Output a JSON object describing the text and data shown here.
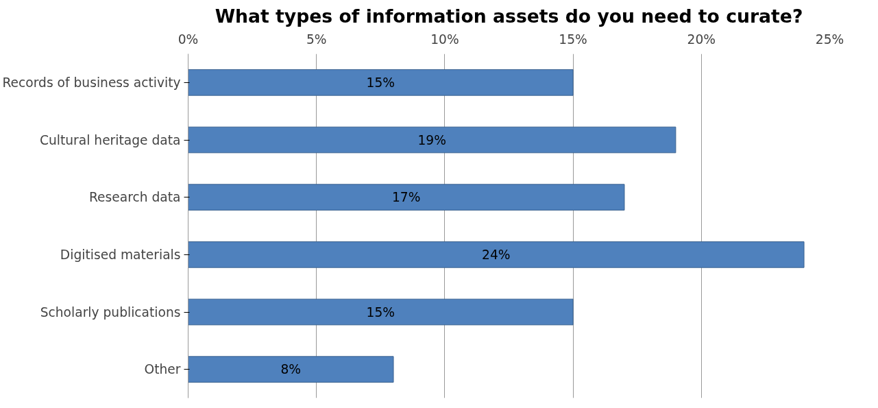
{
  "chart_data": {
    "type": "bar",
    "orientation": "horizontal",
    "title": "What types of information assets do you need to curate?",
    "categories": [
      "Records of business activity",
      "Cultural heritage data",
      "Research data",
      "Digitised materials",
      "Scholarly publications",
      "Other"
    ],
    "values": [
      15,
      19,
      17,
      24,
      15,
      8
    ],
    "value_labels": [
      "15%",
      "19%",
      "17%",
      "24%",
      "15%",
      "8%"
    ],
    "color": "#4f81bd",
    "xlim": [
      0,
      25
    ],
    "xticks": [
      {
        "value": 0,
        "label": "0%"
      },
      {
        "value": 5,
        "label": "5%"
      },
      {
        "value": 10,
        "label": "10%"
      },
      {
        "value": 15,
        "label": "15%"
      },
      {
        "value": 20,
        "label": "20%"
      },
      {
        "value": 25,
        "label": "25%"
      }
    ],
    "grid": "x"
  }
}
